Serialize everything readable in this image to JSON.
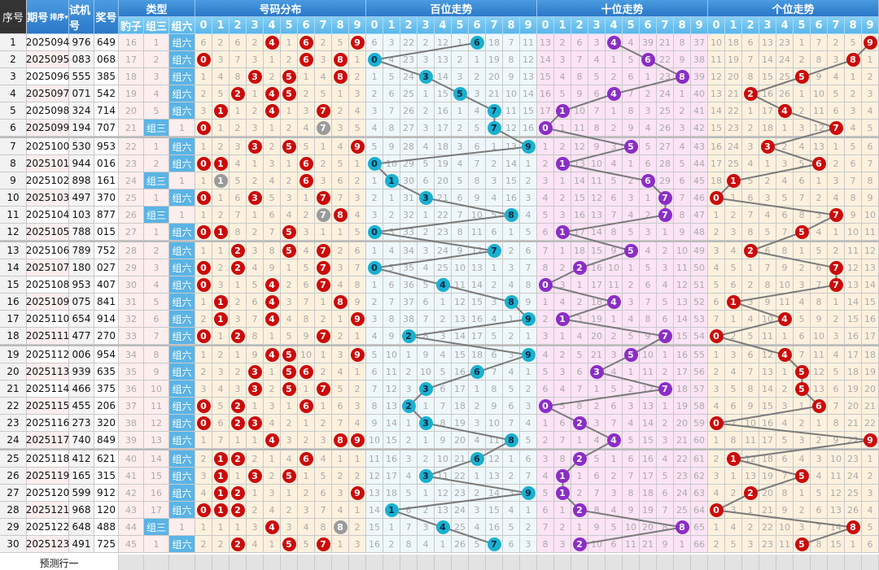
{
  "headers": {
    "seq": "序号",
    "period": "期号",
    "sort": "排序",
    "test": "试机号",
    "draw": "奖号",
    "type": "类型",
    "baozi": "豹子",
    "zusan": "组三",
    "zuliu": "组六",
    "dist": "号码分布",
    "bai": "百位走势",
    "shi": "十位走势",
    "ge": "个位走势",
    "digits": [
      "0",
      "1",
      "2",
      "3",
      "4",
      "5",
      "6",
      "7",
      "8",
      "9"
    ]
  },
  "rows": [
    [
      "1",
      "2025094",
      "976",
      "649"
    ],
    [
      "2",
      "2025095",
      "083",
      "068"
    ],
    [
      "3",
      "2025096",
      "555",
      "385"
    ],
    [
      "4",
      "2025097",
      "071",
      "542"
    ],
    [
      "5",
      "2025098",
      "324",
      "714"
    ],
    [
      "6",
      "2025099",
      "194",
      "707"
    ],
    [
      "7",
      "2025100",
      "530",
      "953"
    ],
    [
      "8",
      "2025101",
      "944",
      "016"
    ],
    [
      "9",
      "2025102",
      "898",
      "161"
    ],
    [
      "10",
      "2025103",
      "497",
      "370"
    ],
    [
      "11",
      "2025104",
      "103",
      "877"
    ],
    [
      "12",
      "2025105",
      "788",
      "015"
    ],
    [
      "13",
      "2025106",
      "789",
      "752"
    ],
    [
      "14",
      "2025107",
      "180",
      "027"
    ],
    [
      "15",
      "2025108",
      "953",
      "407"
    ],
    [
      "16",
      "2025109",
      "075",
      "841"
    ],
    [
      "17",
      "2025110",
      "654",
      "914"
    ],
    [
      "18",
      "2025111",
      "477",
      "270"
    ],
    [
      "19",
      "2025112",
      "006",
      "954"
    ],
    [
      "20",
      "2025113",
      "939",
      "635"
    ],
    [
      "21",
      "2025114",
      "466",
      "375"
    ],
    [
      "22",
      "2025115",
      "455",
      "206"
    ],
    [
      "23",
      "2025116",
      "273",
      "320"
    ],
    [
      "24",
      "2025117",
      "740",
      "849"
    ],
    [
      "25",
      "2025118",
      "412",
      "621"
    ],
    [
      "26",
      "2025119",
      "165",
      "315"
    ],
    [
      "27",
      "2025120",
      "599",
      "912"
    ],
    [
      "28",
      "2025121",
      "968",
      "120"
    ],
    [
      "29",
      "2025122",
      "648",
      "488"
    ],
    [
      "30",
      "2025123",
      "491",
      "725"
    ]
  ],
  "first_row_omission": {
    "baozi": 16,
    "zusan": 1,
    "dist": [
      6,
      2,
      6,
      2,
      0,
      1,
      0,
      2,
      5,
      0
    ],
    "bai": [
      6,
      3,
      22,
      2,
      12,
      1,
      0,
      18,
      7,
      11
    ],
    "shi": [
      13,
      2,
      6,
      3,
      0,
      4,
      39,
      21,
      8,
      37
    ],
    "ge": [
      10,
      18,
      6,
      13,
      23,
      1,
      7,
      2,
      5,
      0
    ]
  },
  "predict_label": "预测行一",
  "colors": {
    "dist_ball": "#cc0a0a",
    "repeat_ball": "#9a9a9a",
    "bai_ball": "#1ab0cf",
    "shi_ball": "#8a2ec6",
    "ge_ball": "#cc0a0a",
    "dist_bg": "#fdf1de",
    "bai_bg": "#eef8fc",
    "shi_bg": "#fce3f6",
    "ge_bg": "#fdf1de",
    "line": "#7a7a7a"
  }
}
